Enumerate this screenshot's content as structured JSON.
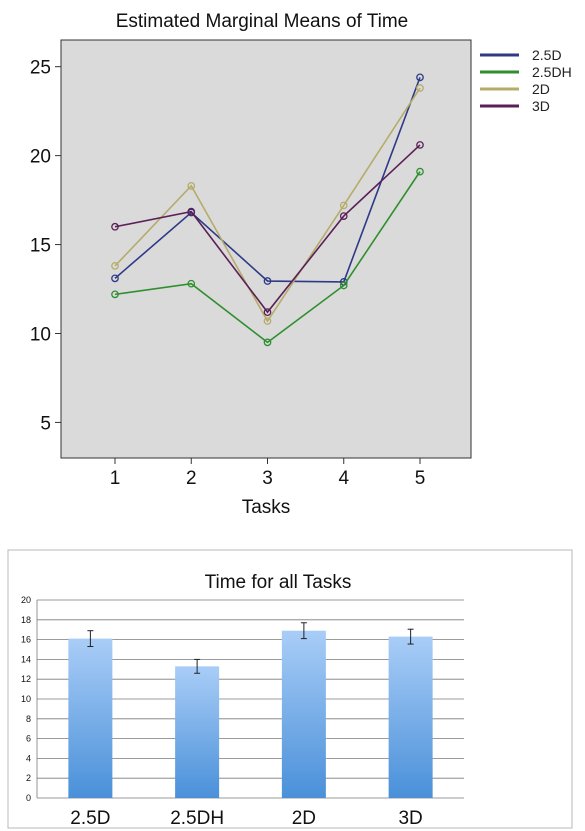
{
  "chart_data": [
    {
      "type": "line",
      "title": "Estimated Marginal Means of Time",
      "xlabel": "Tasks",
      "ylabel": "",
      "categories": [
        "1",
        "2",
        "3",
        "4",
        "5"
      ],
      "ylim": [
        3,
        26.5
      ],
      "yticks": [
        5,
        10,
        15,
        20,
        25
      ],
      "grid": false,
      "legend_position": "right",
      "series": [
        {
          "name": "2.5D",
          "color": "#2e3a87",
          "values": [
            13.1,
            16.8,
            12.95,
            12.9,
            24.4
          ]
        },
        {
          "name": "2.5DH",
          "color": "#2f8f2f",
          "values": [
            12.2,
            12.8,
            9.5,
            12.7,
            19.1
          ]
        },
        {
          "name": "2D",
          "color": "#b5ac6a",
          "values": [
            13.8,
            18.3,
            10.7,
            17.2,
            23.8
          ]
        },
        {
          "name": "3D",
          "color": "#5a1f57",
          "values": [
            16.0,
            16.85,
            11.2,
            16.6,
            20.6
          ]
        }
      ]
    },
    {
      "type": "bar",
      "title": "Time for all Tasks",
      "xlabel": "",
      "ylabel": "",
      "categories": [
        "2.5D",
        "2.5DH",
        "2D",
        "3D"
      ],
      "values": [
        16.1,
        13.3,
        16.9,
        16.3
      ],
      "error": [
        0.8,
        0.7,
        0.8,
        0.75
      ],
      "ylim": [
        0,
        20
      ],
      "yticks": [
        0,
        2,
        4,
        6,
        8,
        10,
        12,
        14,
        16,
        18,
        20
      ],
      "grid": true,
      "bar_color_top": "#a9cdf7",
      "bar_color_bottom": "#4a90d9"
    }
  ]
}
